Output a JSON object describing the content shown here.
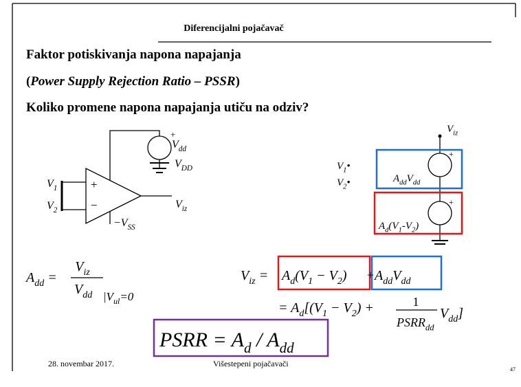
{
  "header": {
    "title": "Diferencijalni pojačavač"
  },
  "title_lines": {
    "line1": "Faktor potiskivanja napona napajanja",
    "line2": {
      "open": "(",
      "italic": "Power Supply Rejection Ratio – PSSR",
      "close": ")"
    },
    "line3": "Koliko promene napona napajanja utiču na odziv?"
  },
  "circuit_left": {
    "v1": [
      {
        "text": "V",
        "sub": "1"
      }
    ],
    "v2": [
      {
        "text": "V",
        "sub": "2"
      }
    ],
    "plus": "+",
    "minus": "−",
    "supply_plus": "+",
    "vdd": [
      {
        "text": "V",
        "sub": "dd"
      }
    ],
    "vdd_rail": [
      {
        "text": "V",
        "sub": "DD"
      }
    ],
    "vss": [
      {
        "text": "−V",
        "sub": "SS"
      }
    ],
    "viz": [
      {
        "text": "V",
        "sub": "iz"
      }
    ]
  },
  "circuit_right": {
    "viz": [
      {
        "text": "V",
        "sub": "iz"
      }
    ],
    "v1": [
      {
        "text": "V",
        "sub": "1"
      },
      {
        "text": "•"
      }
    ],
    "v2": [
      {
        "text": "V",
        "sub": "2"
      },
      {
        "text": "•"
      }
    ],
    "source1_plus": "+",
    "source1": [
      {
        "text": "A",
        "sub": "dd"
      },
      {
        "text": "V",
        "sub": "dd"
      }
    ],
    "source2_plus": "+",
    "source2": [
      {
        "text": "A",
        "sub": "d"
      },
      {
        "text": "(V",
        "sub": "1"
      },
      {
        "text": "-V",
        "sub": "2"
      },
      {
        "text": ")"
      }
    ]
  },
  "equations": {
    "add": {
      "lhs": [
        {
          "text": "A",
          "sub": "dd"
        },
        {
          "text": " ="
        }
      ],
      "numerator": [
        {
          "text": "V",
          "sub": "iz"
        }
      ],
      "denominator": [
        {
          "text": "V",
          "sub": "dd"
        }
      ],
      "condition": [
        {
          "text": "|V",
          "sub": "ul"
        },
        {
          "text": "=0"
        }
      ]
    },
    "viz": {
      "lhs": [
        {
          "text": "V",
          "sub": "iz"
        },
        {
          "text": " ="
        }
      ],
      "term1": [
        {
          "text": "A",
          "sub": "d"
        },
        {
          "text": "(V",
          "sub": "1"
        },
        {
          "text": " − V",
          "sub": "2"
        },
        {
          "text": ")"
        }
      ],
      "plus": "+",
      "term2": [
        {
          "text": "A",
          "sub": "dd"
        },
        {
          "text": "V",
          "sub": "dd"
        }
      ]
    },
    "line2": {
      "before": [
        {
          "text": "= A",
          "sub": "d"
        },
        {
          "text": "[(V",
          "sub": "1"
        },
        {
          "text": " − V",
          "sub": "2"
        },
        {
          "text": ") +"
        }
      ],
      "numerator": "1",
      "denominator": [
        {
          "text": "PSRR",
          "sub": "dd"
        }
      ],
      "after": [
        {
          "text": "V",
          "sub": "dd"
        },
        {
          "text": "]"
        }
      ]
    },
    "psrr": [
      {
        "text": "PSRR = A",
        "sub": "d"
      },
      {
        "text": " / A",
        "sub": "dd"
      }
    ]
  },
  "footer": {
    "date": "28. novembar 2017.",
    "center": "Višestepeni pojačavači",
    "page": "47"
  }
}
